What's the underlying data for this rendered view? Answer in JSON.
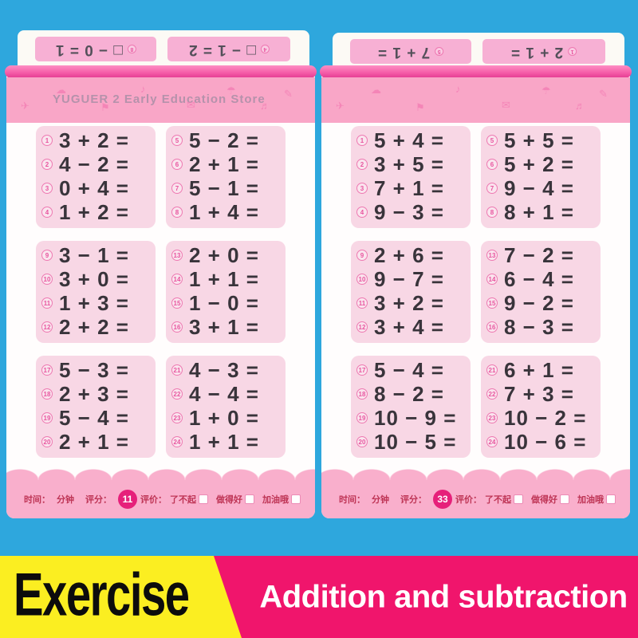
{
  "colors": {
    "background": "#2EA7DD",
    "page_paper": "#FFFDFD",
    "header_band": "#F9A6C7",
    "binding_roll": "#F65FA9",
    "problem_block": "#F8D7E5",
    "equation_text": "#39343B",
    "circle_number": "#E8559F",
    "footer_band": "#F9AFCC",
    "footer_text": "#BE3455",
    "badge": "#E6207A",
    "flipped_strip": "#F7B0D4",
    "banner_yellow": "#FBEE21",
    "banner_magenta": "#F0156C"
  },
  "banner": {
    "exercise_label": "Exercise",
    "title": "Addition and subtraction"
  },
  "footer_labels": {
    "time": "时间：",
    "minutes": "分钟",
    "score": "评分：",
    "evaluation": "评价：",
    "options": [
      "了不起",
      "做得好",
      "加油哦"
    ]
  },
  "doodle_icons": [
    "✈",
    "☁",
    "⚑",
    "♪",
    "✉",
    "☂",
    "♬",
    "✎"
  ],
  "pages": [
    {
      "side": "left",
      "page_number": "11",
      "watermark": "YUGUER 2 Early Education Store",
      "flipped_strips": [
        {
          "number": "8",
          "equation": "□ − 0 = 1"
        },
        {
          "number": "4",
          "equation": "□ − 1 = 2"
        }
      ],
      "blocks": [
        [
          {
            "n": "1",
            "expr": "3 + 2 ="
          },
          {
            "n": "2",
            "expr": "4 − 2 ="
          },
          {
            "n": "3",
            "expr": "0 + 4 ="
          },
          {
            "n": "4",
            "expr": "1 + 2 ="
          }
        ],
        [
          {
            "n": "5",
            "expr": "5 − 2 ="
          },
          {
            "n": "6",
            "expr": "2 + 1 ="
          },
          {
            "n": "7",
            "expr": "5 − 1 ="
          },
          {
            "n": "8",
            "expr": "1 + 4 ="
          }
        ],
        [
          {
            "n": "9",
            "expr": "3 − 1 ="
          },
          {
            "n": "10",
            "expr": "3 + 0 ="
          },
          {
            "n": "11",
            "expr": "1 + 3 ="
          },
          {
            "n": "12",
            "expr": "2 + 2 ="
          }
        ],
        [
          {
            "n": "13",
            "expr": "2 + 0 ="
          },
          {
            "n": "14",
            "expr": "1 + 1 ="
          },
          {
            "n": "15",
            "expr": "1 − 0 ="
          },
          {
            "n": "16",
            "expr": "3 + 1 ="
          }
        ],
        [
          {
            "n": "17",
            "expr": "5 − 3 ="
          },
          {
            "n": "18",
            "expr": "2 + 3 ="
          },
          {
            "n": "19",
            "expr": "5 − 4 ="
          },
          {
            "n": "20",
            "expr": "2 + 1 ="
          }
        ],
        [
          {
            "n": "21",
            "expr": "4 − 3 ="
          },
          {
            "n": "22",
            "expr": "4 − 4 ="
          },
          {
            "n": "23",
            "expr": "1 + 0 ="
          },
          {
            "n": "24",
            "expr": "1 + 1 ="
          }
        ]
      ]
    },
    {
      "side": "right",
      "page_number": "33",
      "watermark": "",
      "flipped_strips": [
        {
          "number": "5",
          "equation": "7 + 1 ="
        },
        {
          "number": "1",
          "equation": "2 + 1 ="
        }
      ],
      "blocks": [
        [
          {
            "n": "1",
            "expr": "5 + 4 ="
          },
          {
            "n": "2",
            "expr": "3 + 5 ="
          },
          {
            "n": "3",
            "expr": "7 + 1 ="
          },
          {
            "n": "4",
            "expr": "9 − 3 ="
          }
        ],
        [
          {
            "n": "5",
            "expr": "5 + 5 ="
          },
          {
            "n": "6",
            "expr": "5 + 2 ="
          },
          {
            "n": "7",
            "expr": "9 − 4 ="
          },
          {
            "n": "8",
            "expr": "8 + 1 ="
          }
        ],
        [
          {
            "n": "9",
            "expr": "2 + 6 ="
          },
          {
            "n": "10",
            "expr": "9 − 7 ="
          },
          {
            "n": "11",
            "expr": "3 + 2 ="
          },
          {
            "n": "12",
            "expr": "3 + 4 ="
          }
        ],
        [
          {
            "n": "13",
            "expr": "7 − 2 ="
          },
          {
            "n": "14",
            "expr": "6 − 4 ="
          },
          {
            "n": "15",
            "expr": "9 − 2 ="
          },
          {
            "n": "16",
            "expr": "8 − 3 ="
          }
        ],
        [
          {
            "n": "17",
            "expr": "5 − 4 ="
          },
          {
            "n": "18",
            "expr": "8 − 2 ="
          },
          {
            "n": "19",
            "expr": "10 − 9 ="
          },
          {
            "n": "20",
            "expr": "10 − 5 ="
          }
        ],
        [
          {
            "n": "21",
            "expr": "6 + 1 ="
          },
          {
            "n": "22",
            "expr": "7 + 3 ="
          },
          {
            "n": "23",
            "expr": "10 − 2 ="
          },
          {
            "n": "24",
            "expr": "10 − 6 ="
          }
        ]
      ]
    }
  ]
}
